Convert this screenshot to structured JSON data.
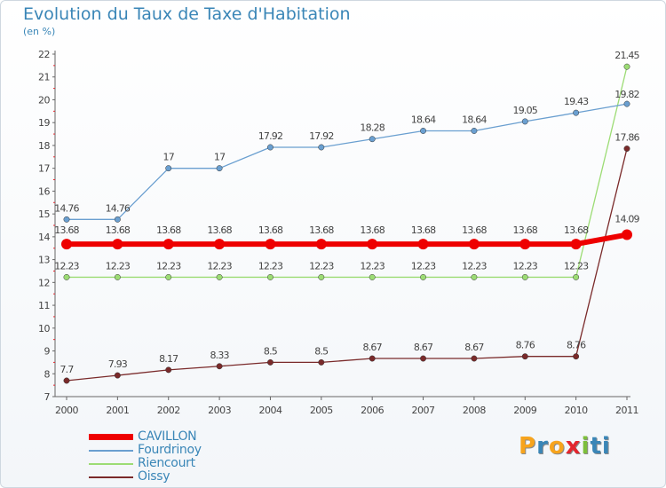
{
  "title": "Evolution du Taux de Taxe d'Habitation",
  "subtitle": "(en %)",
  "logo_text": "Proxiti",
  "logo_colors": [
    "#f7a41d",
    "#3a86b7",
    "#f7a41d",
    "#e3262e",
    "#7dbf3c",
    "#3a86b7",
    "#3a86b7"
  ],
  "chart_data": {
    "type": "line",
    "title": "Evolution du Taux de Taxe d'Habitation",
    "ylabel": "(en %)",
    "x": [
      "2000",
      "2001",
      "2002",
      "2003",
      "2004",
      "2005",
      "2006",
      "2007",
      "2008",
      "2009",
      "2010",
      "2011"
    ],
    "ylim": [
      7,
      22
    ],
    "yticks": [
      7,
      8,
      9,
      10,
      11,
      12,
      13,
      14,
      15,
      16,
      17,
      18,
      19,
      20,
      21,
      22
    ],
    "grid": false,
    "legend_position": "bottom-left",
    "series": [
      {
        "name": "CAVILLON",
        "color": "#ee0000",
        "values": [
          13.68,
          13.68,
          13.68,
          13.68,
          13.68,
          13.68,
          13.68,
          13.68,
          13.68,
          13.68,
          13.68,
          14.09
        ],
        "labels": [
          "13.68",
          "13.68",
          "13.68",
          "13.68",
          "13.68",
          "13.68",
          "13.68",
          "13.68",
          "13.68",
          "13.68",
          "13.68",
          "14.09"
        ]
      },
      {
        "name": "Fourdrinoy",
        "color": "#6a9fd0",
        "values": [
          14.76,
          14.76,
          17,
          17,
          17.92,
          17.92,
          18.28,
          18.64,
          18.64,
          19.05,
          19.43,
          19.82
        ],
        "labels": [
          "14.76",
          "14.76",
          "17",
          "17",
          "17.92",
          "17.92",
          "18.28",
          "18.64",
          "18.64",
          "19.05",
          "19.43",
          "19.82"
        ]
      },
      {
        "name": "Riencourt",
        "color": "#9cdc74",
        "values": [
          12.23,
          12.23,
          12.23,
          12.23,
          12.23,
          12.23,
          12.23,
          12.23,
          12.23,
          12.23,
          12.23,
          21.45
        ],
        "labels": [
          "12.23",
          "12.23",
          "12.23",
          "12.23",
          "12.23",
          "12.23",
          "12.23",
          "12.23",
          "12.23",
          "12.23",
          "12.23",
          "21.45"
        ]
      },
      {
        "name": "Oissy",
        "color": "#7a2a2a",
        "values": [
          7.7,
          7.93,
          8.17,
          8.33,
          8.5,
          8.5,
          8.67,
          8.67,
          8.67,
          8.76,
          8.76,
          17.86
        ],
        "labels": [
          "7.7",
          "7.93",
          "8.17",
          "8.33",
          "8.5",
          "8.5",
          "8.67",
          "8.67",
          "8.67",
          "8.76",
          "8.76",
          "17.86"
        ]
      }
    ]
  }
}
